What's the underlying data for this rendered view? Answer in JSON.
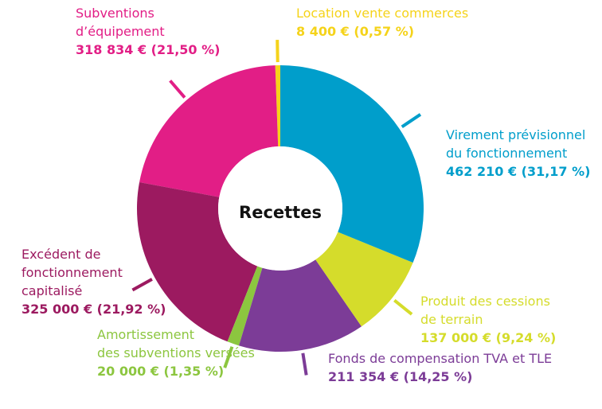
{
  "chart_data": {
    "type": "donut",
    "center_label": "Recettes",
    "categories": [
      "Virement prévisionnel\ndu fonctionnement",
      "Produit des cessions\nde terrain",
      "Fonds de compensation TVA et TLE",
      "Amortissement\ndes subventions versées",
      "Excédent de\nfonctionnement\ncapitalisé",
      "Subventions\nd’équipement",
      "Location vente commerces"
    ],
    "values": [
      462210,
      137000,
      211354,
      20000,
      325000,
      318834,
      8400
    ],
    "value_labels": [
      "462 210 € (31,17 %)",
      "137 000 € (9,24 %)",
      "211 354 € (14,25 %)",
      "20 000 € (1,35 %)",
      "325 000 € (21,92 %)",
      "318 834 € (21,50 %)",
      "8 400 € (0,57 %)"
    ],
    "colors": [
      "#009ecb",
      "#d5dc2b",
      "#7c3c97",
      "#8cc63f",
      "#9c1a60",
      "#e21e86",
      "#f5d31a"
    ]
  }
}
